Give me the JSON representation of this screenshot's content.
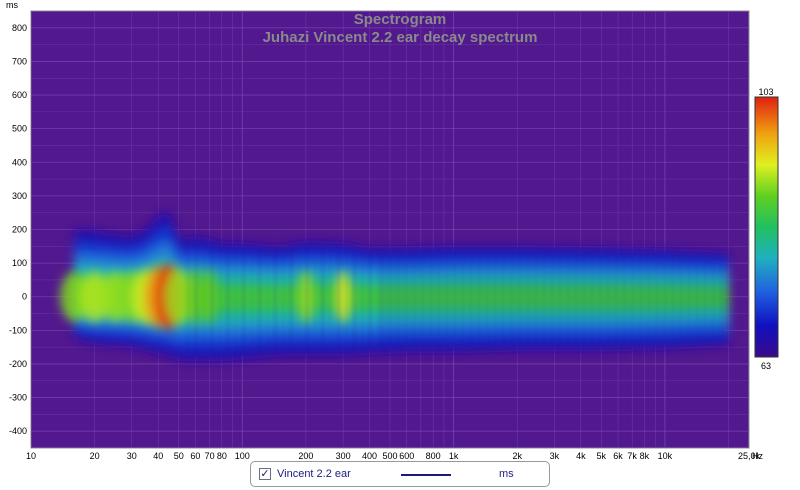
{
  "chart_data": {
    "type": "heatmap",
    "title": "Spectrogram",
    "subtitle": "Juhazi Vincent 2.2 ear decay spectrum",
    "y_unit": "ms",
    "x_unit": "Hz",
    "x_scale": "log",
    "xlim": [
      10,
      25000
    ],
    "ylim": [
      -450,
      850
    ],
    "y_ticks": [
      800,
      700,
      600,
      500,
      400,
      300,
      200,
      100,
      0,
      -100,
      -200,
      -300,
      -400
    ],
    "x_ticks": [
      {
        "value": 10,
        "label": "10"
      },
      {
        "value": 20,
        "label": "20"
      },
      {
        "value": 30,
        "label": "30"
      },
      {
        "value": 40,
        "label": "40"
      },
      {
        "value": 50,
        "label": "50"
      },
      {
        "value": 60,
        "label": "60"
      },
      {
        "value": 70,
        "label": "70"
      },
      {
        "value": 80,
        "label": "80"
      },
      {
        "value": 100,
        "label": "100"
      },
      {
        "value": 200,
        "label": "200"
      },
      {
        "value": 300,
        "label": "300"
      },
      {
        "value": 400,
        "label": "400"
      },
      {
        "value": 500,
        "label": "500"
      },
      {
        "value": 600,
        "label": "600"
      },
      {
        "value": 800,
        "label": "800"
      },
      {
        "value": 1000,
        "label": "1k"
      },
      {
        "value": 2000,
        "label": "2k"
      },
      {
        "value": 3000,
        "label": "3k"
      },
      {
        "value": 4000,
        "label": "4k"
      },
      {
        "value": 5000,
        "label": "5k"
      },
      {
        "value": 6000,
        "label": "6k"
      },
      {
        "value": 7000,
        "label": "7k"
      },
      {
        "value": 8000,
        "label": "8k"
      },
      {
        "value": 10000,
        "label": "10k"
      },
      {
        "value": 25000,
        "label": "25,0k"
      }
    ],
    "colorbar": {
      "max_label": "103",
      "min_label": "63",
      "min": 63,
      "max": 103
    },
    "grid": true,
    "legend_position": "bottom-center",
    "series": [
      {
        "name": "Vincent 2.2 ear"
      }
    ],
    "decay_profile": [
      {
        "f": 16,
        "early": -125,
        "late": 200,
        "peak": 89
      },
      {
        "f": 20,
        "early": -140,
        "late": 195,
        "peak": 91
      },
      {
        "f": 25,
        "early": -145,
        "late": 185,
        "peak": 90
      },
      {
        "f": 30,
        "early": -150,
        "late": 180,
        "peak": 89
      },
      {
        "f": 35,
        "early": -160,
        "late": 200,
        "peak": 92
      },
      {
        "f": 40,
        "early": -170,
        "late": 240,
        "peak": 98
      },
      {
        "f": 45,
        "early": -175,
        "late": 260,
        "peak": 103
      },
      {
        "f": 50,
        "early": -190,
        "late": 170,
        "peak": 90
      },
      {
        "f": 60,
        "early": -190,
        "late": 180,
        "peak": 88
      },
      {
        "f": 70,
        "early": -190,
        "late": 170,
        "peak": 88
      },
      {
        "f": 80,
        "early": -190,
        "late": 160,
        "peak": 87
      },
      {
        "f": 100,
        "early": -185,
        "late": 160,
        "peak": 86
      },
      {
        "f": 150,
        "early": -175,
        "late": 150,
        "peak": 85
      },
      {
        "f": 200,
        "early": -175,
        "late": 165,
        "peak": 90
      },
      {
        "f": 300,
        "early": -175,
        "late": 160,
        "peak": 93
      },
      {
        "f": 400,
        "early": -170,
        "late": 145,
        "peak": 87
      },
      {
        "f": 600,
        "early": -165,
        "late": 145,
        "peak": 87
      },
      {
        "f": 1000,
        "early": -165,
        "late": 150,
        "peak": 87
      },
      {
        "f": 2000,
        "early": -160,
        "late": 150,
        "peak": 87
      },
      {
        "f": 5000,
        "early": -160,
        "late": 145,
        "peak": 86
      },
      {
        "f": 10000,
        "early": -155,
        "late": 140,
        "peak": 84
      },
      {
        "f": 20000,
        "early": -145,
        "late": 130,
        "peak": 82
      }
    ]
  },
  "colors": {
    "plot_background": "#52188e",
    "grid": "#7a46b8",
    "title": "#8a8a8a",
    "legend_text": "#202080",
    "legend_line": "#1a1a7a"
  },
  "legend": {
    "checkbox_icon": "check-icon",
    "checked": "✓",
    "series_label": "Vincent 2.2 ear",
    "unit_label": "ms"
  }
}
